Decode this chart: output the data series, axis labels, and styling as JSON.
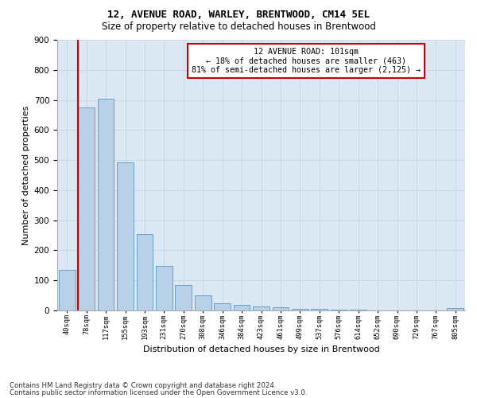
{
  "title1": "12, AVENUE ROAD, WARLEY, BRENTWOOD, CM14 5EL",
  "title2": "Size of property relative to detached houses in Brentwood",
  "xlabel": "Distribution of detached houses by size in Brentwood",
  "ylabel": "Number of detached properties",
  "bar_labels": [
    "40sqm",
    "78sqm",
    "117sqm",
    "155sqm",
    "193sqm",
    "231sqm",
    "270sqm",
    "308sqm",
    "346sqm",
    "384sqm",
    "423sqm",
    "461sqm",
    "499sqm",
    "537sqm",
    "576sqm",
    "614sqm",
    "652sqm",
    "690sqm",
    "729sqm",
    "767sqm",
    "805sqm"
  ],
  "bar_values": [
    135,
    675,
    705,
    493,
    254,
    149,
    85,
    51,
    25,
    18,
    12,
    10,
    6,
    4,
    3,
    2,
    1,
    1,
    0,
    0,
    8
  ],
  "bar_color": "#b8d0e8",
  "bar_edge_color": "#6aa0cc",
  "property_label": "12 AVENUE ROAD: 101sqm",
  "annotation_line1": "← 18% of detached houses are smaller (463)",
  "annotation_line2": "81% of semi-detached houses are larger (2,125) →",
  "vline_color": "#cc0000",
  "annotation_box_color": "#cc0000",
  "footer1": "Contains HM Land Registry data © Crown copyright and database right 2024.",
  "footer2": "Contains public sector information licensed under the Open Government Licence v3.0.",
  "ylim": [
    0,
    900
  ],
  "yticks": [
    0,
    100,
    200,
    300,
    400,
    500,
    600,
    700,
    800,
    900
  ],
  "grid_color": "#c8d8e8",
  "bg_color": "#dce8f4"
}
